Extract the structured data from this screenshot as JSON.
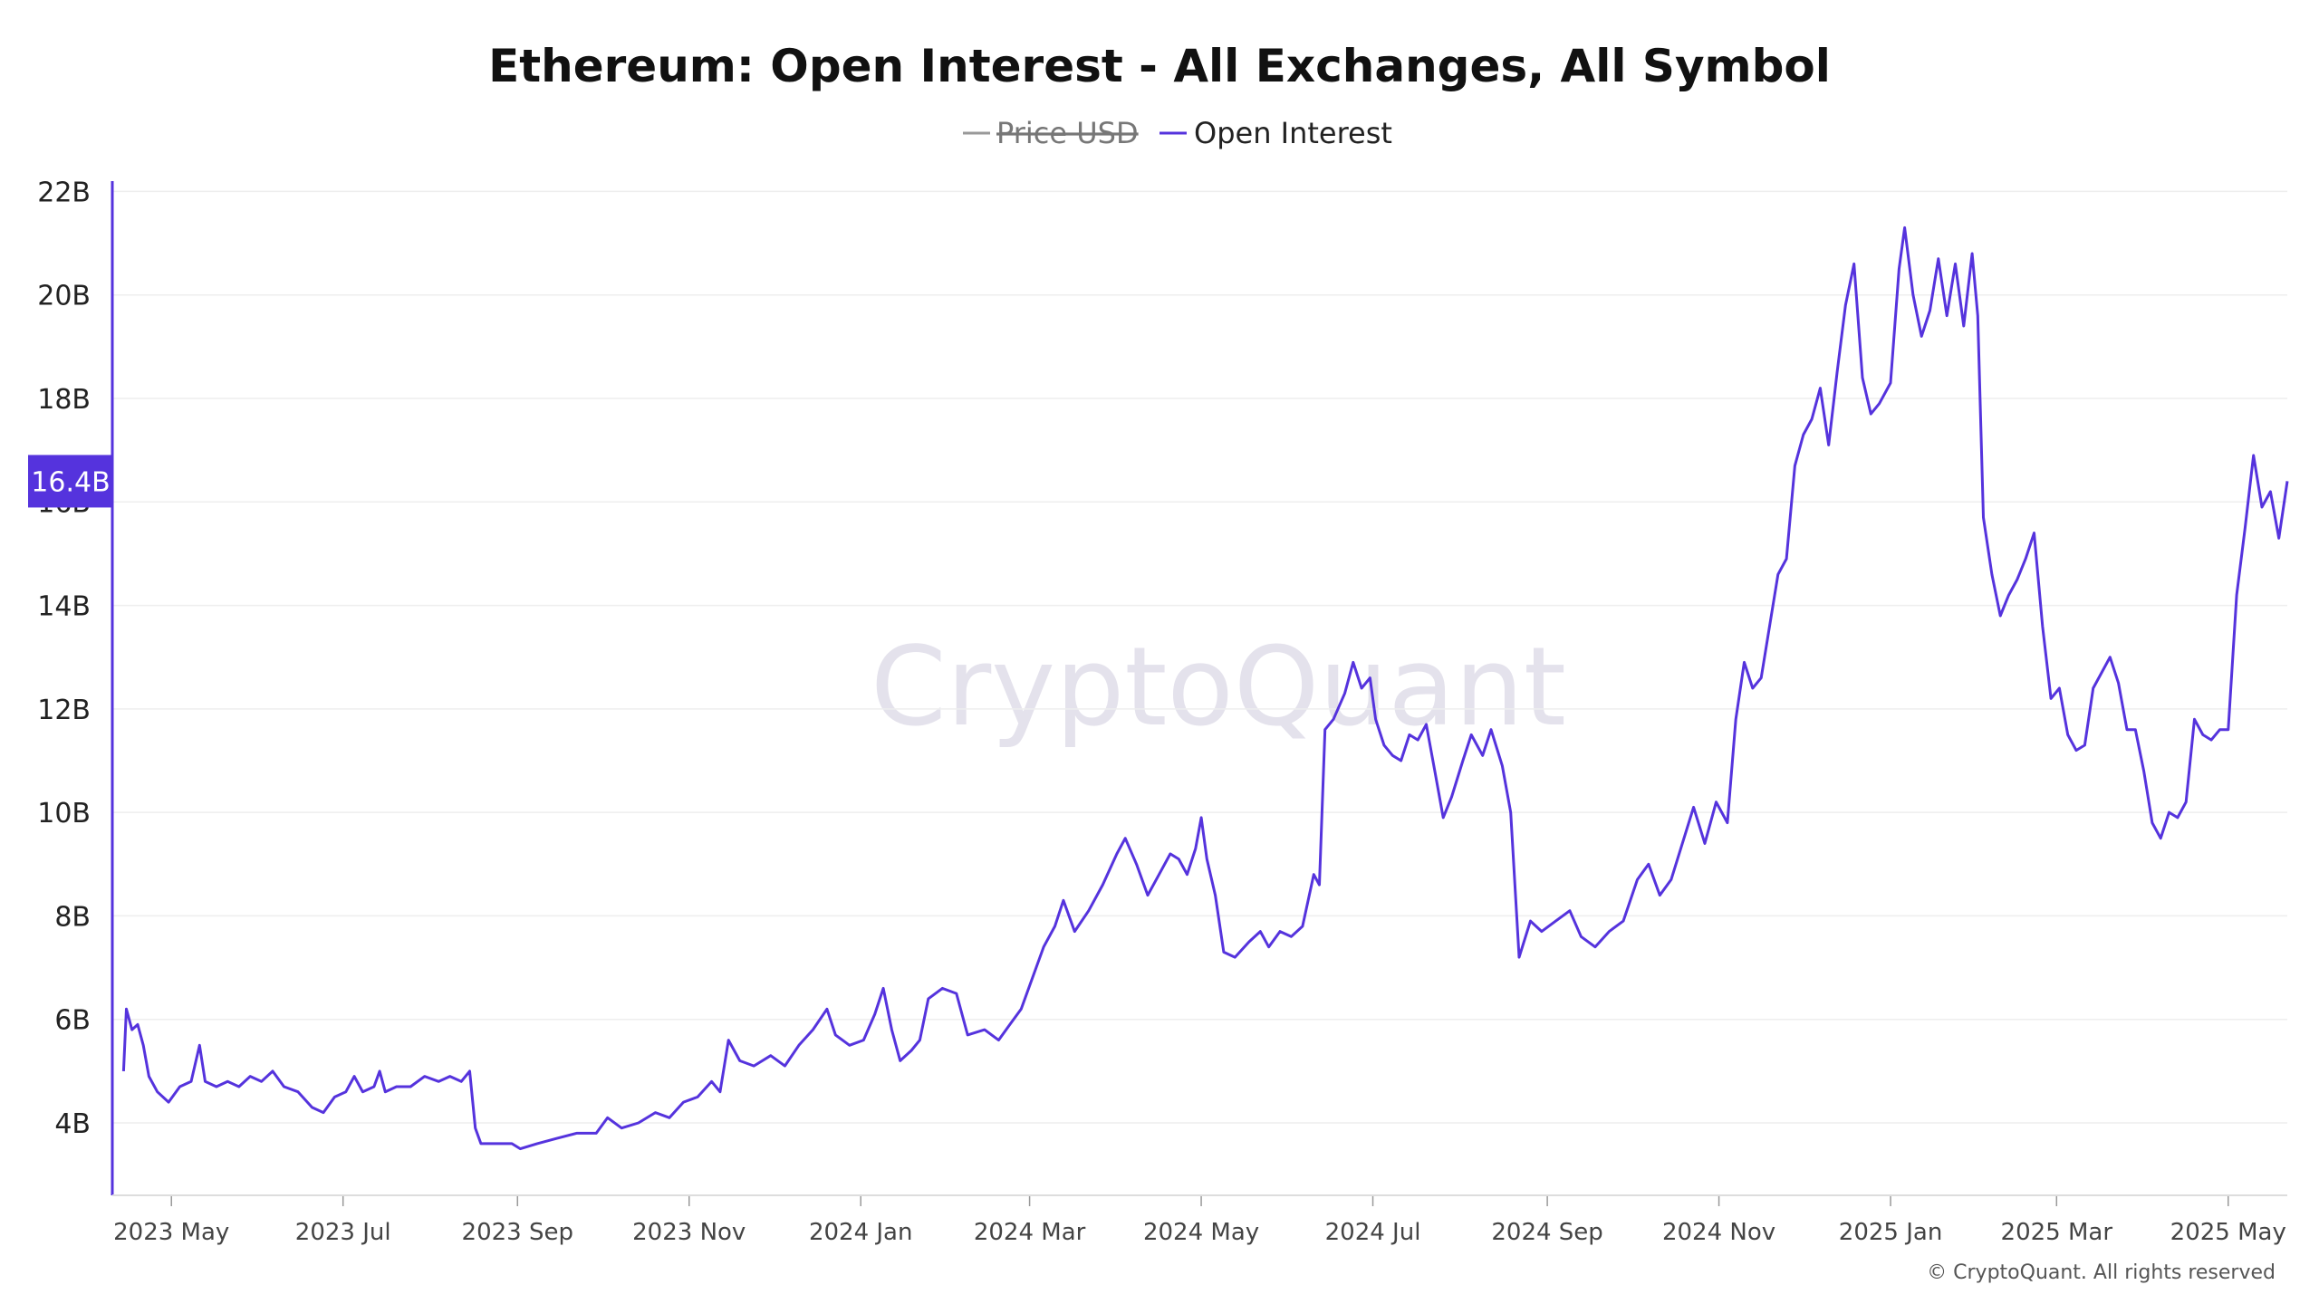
{
  "chart_data": {
    "type": "line",
    "title": "Ethereum: Open Interest - All Exchanges, All Symbol",
    "xlabel": "",
    "ylabel": "",
    "legend": {
      "placement": "top-center",
      "entries": [
        {
          "name": "Price USD",
          "visible": false,
          "color": "#999999"
        },
        {
          "name": "Open Interest",
          "visible": true,
          "color": "#5533dd"
        }
      ]
    },
    "ylim": [
      2.6,
      22.2
    ],
    "y_ticks": [
      {
        "value": 4,
        "label": "4B"
      },
      {
        "value": 6,
        "label": "6B"
      },
      {
        "value": 8,
        "label": "8B"
      },
      {
        "value": 10,
        "label": "10B"
      },
      {
        "value": 12,
        "label": "12B"
      },
      {
        "value": 14,
        "label": "14B"
      },
      {
        "value": 16,
        "label": "16B"
      },
      {
        "value": 18,
        "label": "18B"
      },
      {
        "value": 20,
        "label": "20B"
      },
      {
        "value": 22,
        "label": "22B"
      }
    ],
    "x_range": [
      "2023-04-10",
      "2025-05-22"
    ],
    "x_ticks": [
      {
        "date": "2023-05-01",
        "label": "2023 May"
      },
      {
        "date": "2023-07-01",
        "label": "2023 Jul"
      },
      {
        "date": "2023-09-01",
        "label": "2023 Sep"
      },
      {
        "date": "2023-11-01",
        "label": "2023 Nov"
      },
      {
        "date": "2024-01-01",
        "label": "2024 Jan"
      },
      {
        "date": "2024-03-01",
        "label": "2024 Mar"
      },
      {
        "date": "2024-05-01",
        "label": "2024 May"
      },
      {
        "date": "2024-07-01",
        "label": "2024 Jul"
      },
      {
        "date": "2024-09-01",
        "label": "2024 Sep"
      },
      {
        "date": "2024-11-01",
        "label": "2024 Nov"
      },
      {
        "date": "2025-01-01",
        "label": "2025 Jan"
      },
      {
        "date": "2025-03-01",
        "label": "2025 Mar"
      },
      {
        "date": "2025-05-01",
        "label": "2025 May"
      }
    ],
    "grid": "horizontal",
    "current_value": {
      "value": 16.4,
      "label": "16.4B"
    },
    "series": [
      {
        "name": "Open Interest",
        "unit": "B USD",
        "points": [
          [
            "2023-04-14",
            5.0
          ],
          [
            "2023-04-15",
            6.2
          ],
          [
            "2023-04-17",
            5.8
          ],
          [
            "2023-04-19",
            5.9
          ],
          [
            "2023-04-21",
            5.5
          ],
          [
            "2023-04-23",
            4.9
          ],
          [
            "2023-04-26",
            4.6
          ],
          [
            "2023-04-30",
            4.4
          ],
          [
            "2023-05-04",
            4.7
          ],
          [
            "2023-05-08",
            4.8
          ],
          [
            "2023-05-11",
            5.5
          ],
          [
            "2023-05-13",
            4.8
          ],
          [
            "2023-05-17",
            4.7
          ],
          [
            "2023-05-21",
            4.8
          ],
          [
            "2023-05-25",
            4.7
          ],
          [
            "2023-05-29",
            4.9
          ],
          [
            "2023-06-02",
            4.8
          ],
          [
            "2023-06-06",
            5.0
          ],
          [
            "2023-06-10",
            4.7
          ],
          [
            "2023-06-15",
            4.6
          ],
          [
            "2023-06-20",
            4.3
          ],
          [
            "2023-06-24",
            4.2
          ],
          [
            "2023-06-28",
            4.5
          ],
          [
            "2023-07-02",
            4.6
          ],
          [
            "2023-07-05",
            4.9
          ],
          [
            "2023-07-08",
            4.6
          ],
          [
            "2023-07-12",
            4.7
          ],
          [
            "2023-07-14",
            5.0
          ],
          [
            "2023-07-16",
            4.6
          ],
          [
            "2023-07-20",
            4.7
          ],
          [
            "2023-07-25",
            4.7
          ],
          [
            "2023-07-30",
            4.9
          ],
          [
            "2023-08-04",
            4.8
          ],
          [
            "2023-08-08",
            4.9
          ],
          [
            "2023-08-12",
            4.8
          ],
          [
            "2023-08-15",
            5.0
          ],
          [
            "2023-08-17",
            3.9
          ],
          [
            "2023-08-19",
            3.6
          ],
          [
            "2023-08-24",
            3.6
          ],
          [
            "2023-08-30",
            3.6
          ],
          [
            "2023-09-02",
            3.5
          ],
          [
            "2023-09-08",
            3.6
          ],
          [
            "2023-09-15",
            3.7
          ],
          [
            "2023-09-22",
            3.8
          ],
          [
            "2023-09-29",
            3.8
          ],
          [
            "2023-10-03",
            4.1
          ],
          [
            "2023-10-08",
            3.9
          ],
          [
            "2023-10-14",
            4.0
          ],
          [
            "2023-10-20",
            4.2
          ],
          [
            "2023-10-25",
            4.1
          ],
          [
            "2023-10-30",
            4.4
          ],
          [
            "2023-11-04",
            4.5
          ],
          [
            "2023-11-09",
            4.8
          ],
          [
            "2023-11-12",
            4.6
          ],
          [
            "2023-11-15",
            5.6
          ],
          [
            "2023-11-19",
            5.2
          ],
          [
            "2023-11-24",
            5.1
          ],
          [
            "2023-11-30",
            5.3
          ],
          [
            "2023-12-05",
            5.1
          ],
          [
            "2023-12-10",
            5.5
          ],
          [
            "2023-12-15",
            5.8
          ],
          [
            "2023-12-20",
            6.2
          ],
          [
            "2023-12-23",
            5.7
          ],
          [
            "2023-12-28",
            5.5
          ],
          [
            "2024-01-02",
            5.6
          ],
          [
            "2024-01-06",
            6.1
          ],
          [
            "2024-01-09",
            6.6
          ],
          [
            "2024-01-12",
            5.8
          ],
          [
            "2024-01-15",
            5.2
          ],
          [
            "2024-01-19",
            5.4
          ],
          [
            "2024-01-22",
            5.6
          ],
          [
            "2024-01-25",
            6.4
          ],
          [
            "2024-01-30",
            6.6
          ],
          [
            "2024-02-04",
            6.5
          ],
          [
            "2024-02-08",
            5.7
          ],
          [
            "2024-02-14",
            5.8
          ],
          [
            "2024-02-19",
            5.6
          ],
          [
            "2024-02-23",
            5.9
          ],
          [
            "2024-02-27",
            6.2
          ],
          [
            "2024-03-02",
            6.8
          ],
          [
            "2024-03-06",
            7.4
          ],
          [
            "2024-03-10",
            7.8
          ],
          [
            "2024-03-13",
            8.3
          ],
          [
            "2024-03-17",
            7.7
          ],
          [
            "2024-03-22",
            8.1
          ],
          [
            "2024-03-27",
            8.6
          ],
          [
            "2024-04-01",
            9.2
          ],
          [
            "2024-04-04",
            9.5
          ],
          [
            "2024-04-08",
            9.0
          ],
          [
            "2024-04-12",
            8.4
          ],
          [
            "2024-04-16",
            8.8
          ],
          [
            "2024-04-20",
            9.2
          ],
          [
            "2024-04-23",
            9.1
          ],
          [
            "2024-04-26",
            8.8
          ],
          [
            "2024-04-29",
            9.3
          ],
          [
            "2024-05-01",
            9.9
          ],
          [
            "2024-05-03",
            9.1
          ],
          [
            "2024-05-06",
            8.4
          ],
          [
            "2024-05-09",
            7.3
          ],
          [
            "2024-05-13",
            7.2
          ],
          [
            "2024-05-18",
            7.5
          ],
          [
            "2024-05-22",
            7.7
          ],
          [
            "2024-05-25",
            7.4
          ],
          [
            "2024-05-29",
            7.7
          ],
          [
            "2024-06-02",
            7.6
          ],
          [
            "2024-06-06",
            7.8
          ],
          [
            "2024-06-10",
            8.8
          ],
          [
            "2024-06-12",
            8.6
          ],
          [
            "2024-06-14",
            11.6
          ],
          [
            "2024-06-17",
            11.8
          ],
          [
            "2024-06-21",
            12.3
          ],
          [
            "2024-06-24",
            12.9
          ],
          [
            "2024-06-27",
            12.4
          ],
          [
            "2024-06-30",
            12.6
          ],
          [
            "2024-07-02",
            11.8
          ],
          [
            "2024-07-05",
            11.3
          ],
          [
            "2024-07-08",
            11.1
          ],
          [
            "2024-07-11",
            11.0
          ],
          [
            "2024-07-14",
            11.5
          ],
          [
            "2024-07-17",
            11.4
          ],
          [
            "2024-07-20",
            11.7
          ],
          [
            "2024-07-23",
            10.8
          ],
          [
            "2024-07-26",
            9.9
          ],
          [
            "2024-07-29",
            10.3
          ],
          [
            "2024-08-02",
            11.0
          ],
          [
            "2024-08-05",
            11.5
          ],
          [
            "2024-08-09",
            11.1
          ],
          [
            "2024-08-12",
            11.6
          ],
          [
            "2024-08-16",
            10.9
          ],
          [
            "2024-08-19",
            10.0
          ],
          [
            "2024-08-22",
            7.2
          ],
          [
            "2024-08-26",
            7.9
          ],
          [
            "2024-08-30",
            7.7
          ],
          [
            "2024-09-04",
            7.9
          ],
          [
            "2024-09-09",
            8.1
          ],
          [
            "2024-09-13",
            7.6
          ],
          [
            "2024-09-18",
            7.4
          ],
          [
            "2024-09-23",
            7.7
          ],
          [
            "2024-09-28",
            7.9
          ],
          [
            "2024-10-03",
            8.7
          ],
          [
            "2024-10-07",
            9.0
          ],
          [
            "2024-10-11",
            8.4
          ],
          [
            "2024-10-15",
            8.7
          ],
          [
            "2024-10-19",
            9.4
          ],
          [
            "2024-10-23",
            10.1
          ],
          [
            "2024-10-27",
            9.4
          ],
          [
            "2024-10-31",
            10.2
          ],
          [
            "2024-11-04",
            9.8
          ],
          [
            "2024-11-07",
            11.8
          ],
          [
            "2024-11-10",
            12.9
          ],
          [
            "2024-11-13",
            12.4
          ],
          [
            "2024-11-16",
            12.6
          ],
          [
            "2024-11-19",
            13.6
          ],
          [
            "2024-11-22",
            14.6
          ],
          [
            "2024-11-25",
            14.9
          ],
          [
            "2024-11-28",
            16.7
          ],
          [
            "2024-12-01",
            17.3
          ],
          [
            "2024-12-04",
            17.6
          ],
          [
            "2024-12-07",
            18.2
          ],
          [
            "2024-12-10",
            17.1
          ],
          [
            "2024-12-13",
            18.5
          ],
          [
            "2024-12-16",
            19.8
          ],
          [
            "2024-12-19",
            20.6
          ],
          [
            "2024-12-22",
            18.4
          ],
          [
            "2024-12-25",
            17.7
          ],
          [
            "2024-12-28",
            17.9
          ],
          [
            "2025-01-01",
            18.3
          ],
          [
            "2025-01-04",
            20.5
          ],
          [
            "2025-01-06",
            21.3
          ],
          [
            "2025-01-09",
            20.0
          ],
          [
            "2025-01-12",
            19.2
          ],
          [
            "2025-01-15",
            19.7
          ],
          [
            "2025-01-18",
            20.7
          ],
          [
            "2025-01-21",
            19.6
          ],
          [
            "2025-01-24",
            20.6
          ],
          [
            "2025-01-27",
            19.4
          ],
          [
            "2025-01-30",
            20.8
          ],
          [
            "2025-02-01",
            19.6
          ],
          [
            "2025-02-03",
            15.7
          ],
          [
            "2025-02-06",
            14.6
          ],
          [
            "2025-02-09",
            13.8
          ],
          [
            "2025-02-12",
            14.2
          ],
          [
            "2025-02-15",
            14.5
          ],
          [
            "2025-02-18",
            14.9
          ],
          [
            "2025-02-21",
            15.4
          ],
          [
            "2025-02-24",
            13.6
          ],
          [
            "2025-02-27",
            12.2
          ],
          [
            "2025-03-02",
            12.4
          ],
          [
            "2025-03-05",
            11.5
          ],
          [
            "2025-03-08",
            11.2
          ],
          [
            "2025-03-11",
            11.3
          ],
          [
            "2025-03-14",
            12.4
          ],
          [
            "2025-03-17",
            12.7
          ],
          [
            "2025-03-20",
            13.0
          ],
          [
            "2025-03-23",
            12.5
          ],
          [
            "2025-03-26",
            11.6
          ],
          [
            "2025-03-29",
            11.6
          ],
          [
            "2025-04-01",
            10.8
          ],
          [
            "2025-04-04",
            9.8
          ],
          [
            "2025-04-07",
            9.5
          ],
          [
            "2025-04-10",
            10.0
          ],
          [
            "2025-04-13",
            9.9
          ],
          [
            "2025-04-16",
            10.2
          ],
          [
            "2025-04-19",
            11.8
          ],
          [
            "2025-04-22",
            11.5
          ],
          [
            "2025-04-25",
            11.4
          ],
          [
            "2025-04-28",
            11.6
          ],
          [
            "2025-05-01",
            11.6
          ],
          [
            "2025-05-04",
            14.2
          ],
          [
            "2025-05-07",
            15.5
          ],
          [
            "2025-05-10",
            16.9
          ],
          [
            "2025-05-13",
            15.9
          ],
          [
            "2025-05-16",
            16.2
          ],
          [
            "2025-05-19",
            15.3
          ],
          [
            "2025-05-22",
            16.4
          ]
        ]
      }
    ],
    "colors": {
      "line": "#5533dd",
      "axis": "#5533dd",
      "badge": "#5533dd",
      "grid": "#eeeeee",
      "bottom_axis": "#dddddd"
    },
    "watermark": "CryptoQuant",
    "copyright": "© CryptoQuant. All rights reserved"
  }
}
